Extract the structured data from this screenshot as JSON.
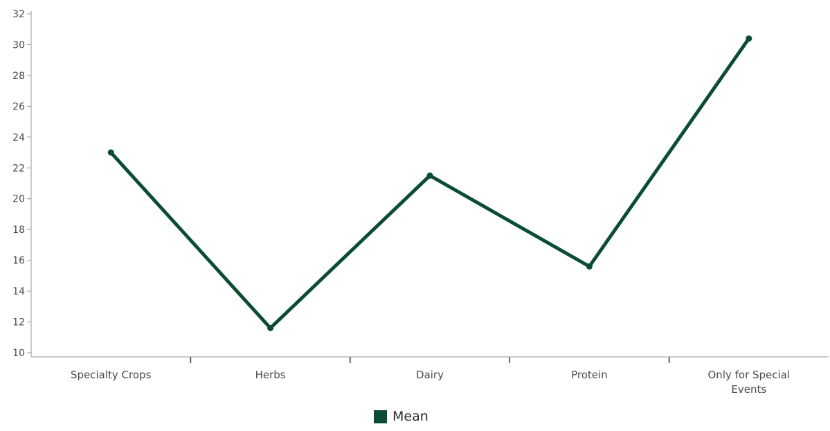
{
  "colors": {
    "series": "#0b4d32",
    "axis": "#9a9a9a",
    "text": "#4a4a4a"
  },
  "chart_data": {
    "type": "line",
    "title": "",
    "xlabel": "",
    "ylabel": "",
    "ylim": [
      10,
      32
    ],
    "yticks": [
      10,
      12,
      14,
      16,
      18,
      20,
      22,
      24,
      26,
      28,
      30,
      32
    ],
    "grid": false,
    "legend_position": "bottom-center",
    "categories": [
      [
        "Specialty Crops"
      ],
      [
        "Herbs"
      ],
      [
        "Dairy"
      ],
      [
        "Protein"
      ],
      [
        "Only for Special",
        "Events"
      ]
    ],
    "series": [
      {
        "name": "Mean",
        "values": [
          23.0,
          11.6,
          21.5,
          15.6,
          30.4
        ]
      }
    ]
  }
}
